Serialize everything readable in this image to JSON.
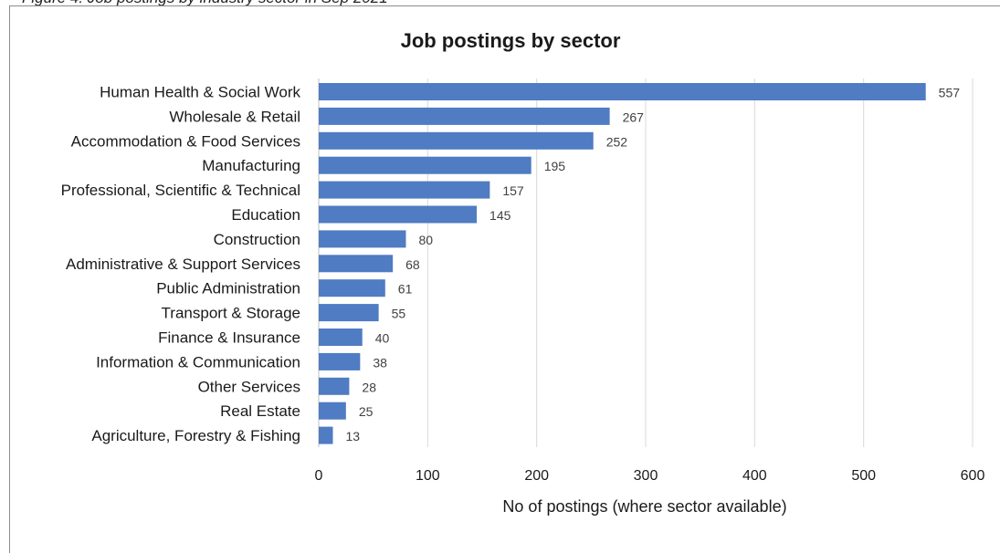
{
  "caption": "Figure 4: Job postings by industry sector in Sep 2021",
  "chart_data": {
    "type": "bar",
    "orientation": "horizontal",
    "title": "Job postings by sector",
    "xlabel": "No of postings (where sector available)",
    "ylabel": "",
    "xlim": [
      0,
      600
    ],
    "xticks": [
      0,
      100,
      200,
      300,
      400,
      500,
      600
    ],
    "grid": true,
    "bar_color": "#4f7cc2",
    "categories": [
      "Human Health & Social Work",
      "Wholesale & Retail",
      "Accommodation & Food Services",
      "Manufacturing",
      "Professional, Scientific & Technical",
      "Education",
      "Construction",
      "Administrative & Support Services",
      "Public Administration",
      "Transport & Storage",
      "Finance & Insurance",
      "Information & Communication",
      "Other Services",
      "Real Estate",
      "Agriculture, Forestry & Fishing"
    ],
    "values": [
      557,
      267,
      252,
      195,
      157,
      145,
      80,
      68,
      61,
      55,
      40,
      38,
      28,
      25,
      13
    ]
  }
}
